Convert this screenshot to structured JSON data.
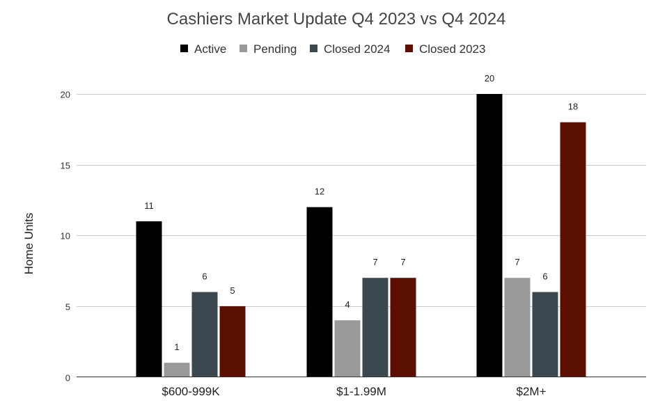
{
  "chart_data": {
    "type": "bar",
    "title": "Cashiers Market Update Q4 2023 vs Q4 2024",
    "xlabel": "",
    "ylabel": "Home Units",
    "ylim": [
      0,
      20
    ],
    "yticks": [
      0,
      5,
      10,
      15,
      20
    ],
    "grid": true,
    "legend_position": "top",
    "categories": [
      "$600-999K",
      "$1-1.99M",
      "$2M+"
    ],
    "series": [
      {
        "name": "Active",
        "color": "#000000",
        "values": [
          11,
          12,
          20
        ]
      },
      {
        "name": "Pending",
        "color": "#999999",
        "values": [
          1,
          4,
          7
        ]
      },
      {
        "name": "Closed 2024",
        "color": "#3c4850",
        "values": [
          6,
          7,
          6
        ]
      },
      {
        "name": "Closed 2023",
        "color": "#5b0f00",
        "values": [
          5,
          7,
          18
        ]
      }
    ]
  }
}
